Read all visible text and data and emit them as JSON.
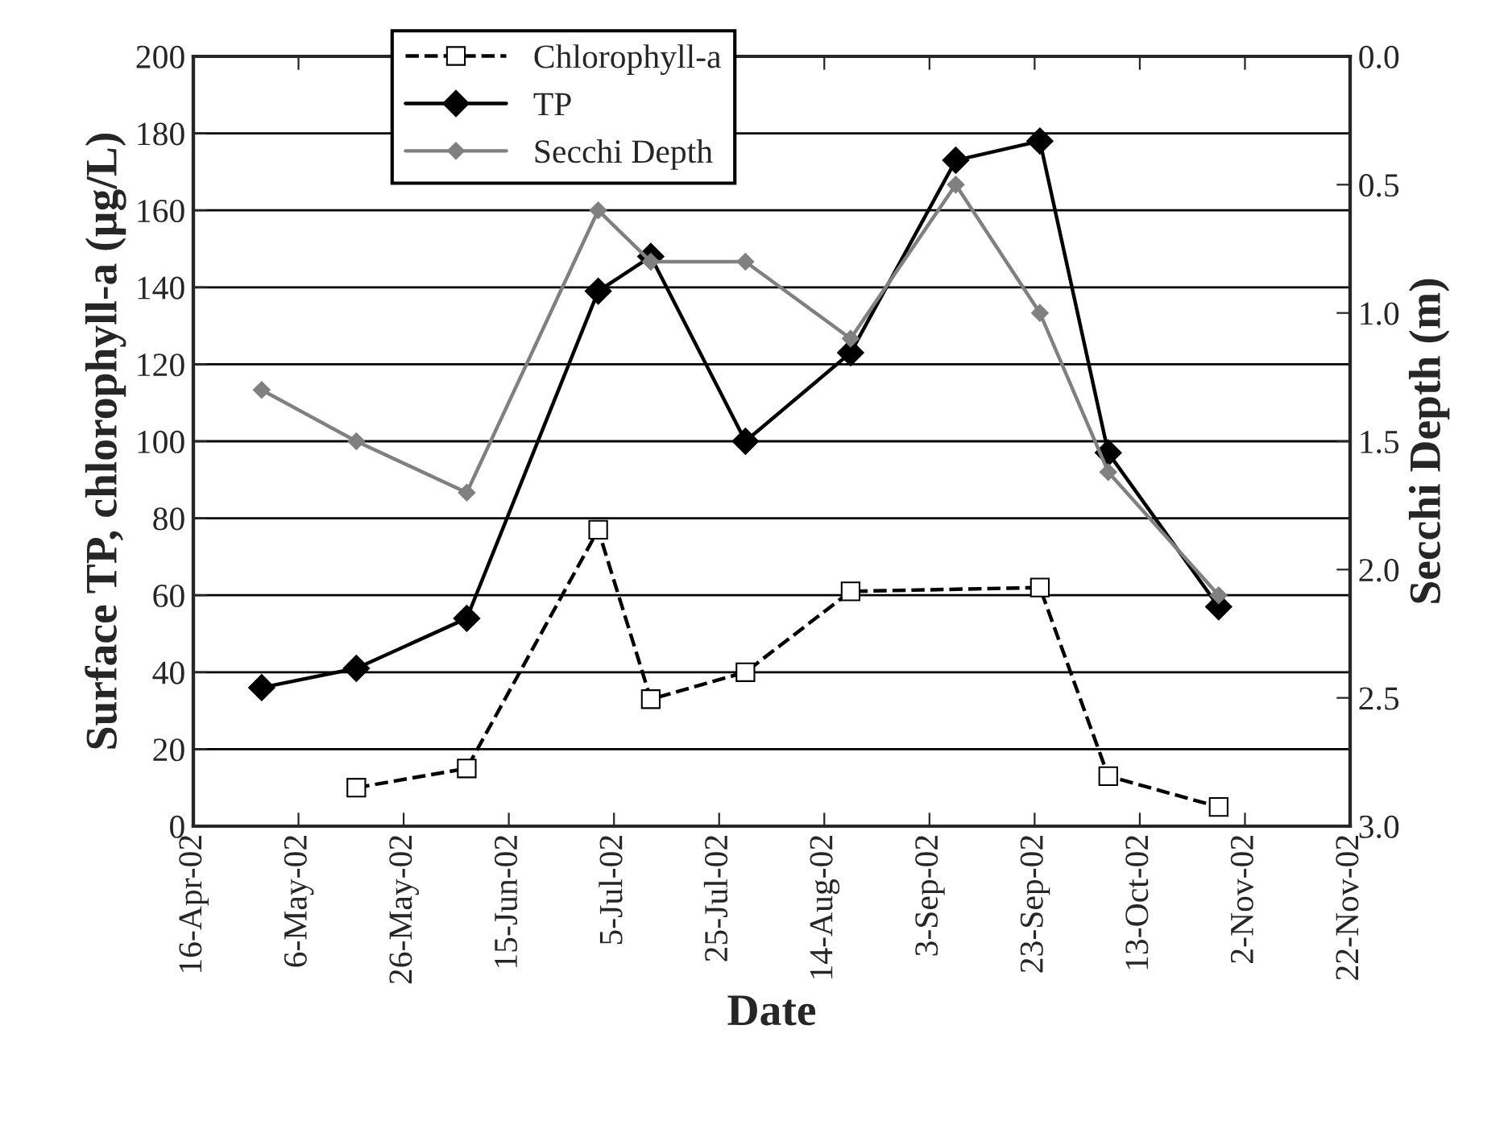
{
  "chart_data": {
    "type": "line",
    "xlabel": "Date",
    "ylabel": "Surface TP, chlorophyll-a (µg/L)",
    "y2label": "Secchi Depth (m)",
    "series": [
      {
        "name": "Chlorophyll-a",
        "color": "#000000",
        "marker": "square",
        "line_style": "dashed",
        "x": [
          "2002-05-17",
          "2002-06-07",
          "2002-07-02",
          "2002-07-12",
          "2002-07-30",
          "2002-08-19",
          "2002-09-24",
          "2002-10-07",
          "2002-10-28"
        ],
        "values": [
          10,
          15,
          77,
          33,
          40,
          61,
          62,
          13,
          5
        ]
      },
      {
        "name": "TP",
        "color": "#000000",
        "marker": "diamond",
        "line_style": "solid",
        "x": [
          "2002-04-29",
          "2002-05-17",
          "2002-06-07",
          "2002-07-02",
          "2002-07-12",
          "2002-07-30",
          "2002-08-19",
          "2002-09-08",
          "2002-09-24",
          "2002-10-07",
          "2002-10-28"
        ],
        "values": [
          36,
          41,
          54,
          139,
          148,
          100,
          123,
          173,
          178,
          97,
          57
        ]
      },
      {
        "name": "Secchi Depth",
        "color": "#808080",
        "marker": "diamond",
        "line_style": "solid",
        "axis": "y2",
        "x": [
          "2002-04-29",
          "2002-05-17",
          "2002-06-07",
          "2002-07-02",
          "2002-07-12",
          "2002-07-30",
          "2002-08-19",
          "2002-09-08",
          "2002-09-24",
          "2002-10-07",
          "2002-10-28"
        ],
        "values": [
          1.3,
          1.5,
          1.7,
          0.6,
          0.8,
          0.8,
          1.1,
          0.5,
          1.0,
          1.62,
          2.1
        ]
      }
    ],
    "xlim": [
      "2002-04-16",
      "2002-11-22"
    ],
    "xticks": [
      {
        "value": "2002-04-16",
        "label": "16-Apr-02"
      },
      {
        "value": "2002-05-06",
        "label": "6-May-02"
      },
      {
        "value": "2002-05-26",
        "label": "26-May-02"
      },
      {
        "value": "2002-06-15",
        "label": "15-Jun-02"
      },
      {
        "value": "2002-07-05",
        "label": "5-Jul-02"
      },
      {
        "value": "2002-07-25",
        "label": "25-Jul-02"
      },
      {
        "value": "2002-08-14",
        "label": "14-Aug-02"
      },
      {
        "value": "2002-09-03",
        "label": "3-Sep-02"
      },
      {
        "value": "2002-09-23",
        "label": "23-Sep-02"
      },
      {
        "value": "2002-10-13",
        "label": "13-Oct-02"
      },
      {
        "value": "2002-11-02",
        "label": "2-Nov-02"
      },
      {
        "value": "2002-11-22",
        "label": "22-Nov-02"
      }
    ],
    "ylim": [
      0,
      200
    ],
    "yticks": [
      0,
      20,
      40,
      60,
      80,
      100,
      120,
      140,
      160,
      180,
      200
    ],
    "y2lim": [
      3.0,
      0.0
    ],
    "y2ticks": [
      {
        "value": 0.0,
        "label": "0.0"
      },
      {
        "value": 0.5,
        "label": "0.5"
      },
      {
        "value": 1.0,
        "label": "1.0"
      },
      {
        "value": 1.5,
        "label": "1.5"
      },
      {
        "value": 2.0,
        "label": "2.0"
      },
      {
        "value": 2.5,
        "label": "2.5"
      },
      {
        "value": 3.0,
        "label": "3.0"
      }
    ],
    "grid": "y",
    "legend": "top"
  }
}
